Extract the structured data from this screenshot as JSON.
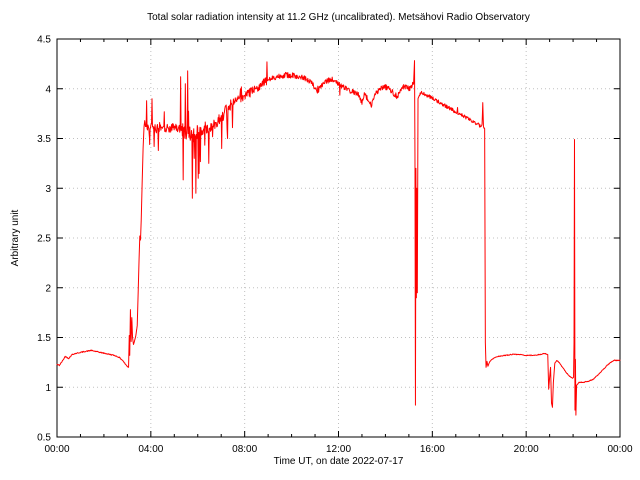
{
  "chart_data": {
    "type": "line",
    "title": "Total solar radiation intensity at 11.2 GHz (uncalibrated). Metsähovi Radio Observatory",
    "xlabel": "Time UT, on date 2022-07-17",
    "ylabel": "Arbitrary unit",
    "xlim_hours": [
      0,
      24
    ],
    "ylim": [
      0.5,
      4.5
    ],
    "grid": true,
    "legend_position": "none",
    "background_color": "#ffffff",
    "line_color": "#ff0000",
    "grid_color": "#c0c0c0",
    "frame_color": "#000000",
    "x_major_ticks": [
      {
        "hour": 0,
        "label": "00:00"
      },
      {
        "hour": 4,
        "label": "04:00"
      },
      {
        "hour": 8,
        "label": "08:00"
      },
      {
        "hour": 12,
        "label": "12:00"
      },
      {
        "hour": 16,
        "label": "16:00"
      },
      {
        "hour": 20,
        "label": "20:00"
      },
      {
        "hour": 24,
        "label": "00:00"
      }
    ],
    "x_minor_tick_every_hours": 1,
    "y_ticks": [
      {
        "value": 0.5,
        "label": "0.5"
      },
      {
        "value": 1.0,
        "label": "1"
      },
      {
        "value": 1.5,
        "label": "1.5"
      },
      {
        "value": 2.0,
        "label": "2"
      },
      {
        "value": 2.5,
        "label": "2.5"
      },
      {
        "value": 3.0,
        "label": "3"
      },
      {
        "value": 3.5,
        "label": "3.5"
      },
      {
        "value": 4.0,
        "label": "4"
      },
      {
        "value": 4.5,
        "label": "4.5"
      }
    ],
    "series": [
      {
        "name": "total-solar-radiation-intensity",
        "points": [
          [
            0.0,
            1.23
          ],
          [
            0.1,
            1.22
          ],
          [
            0.25,
            1.27
          ],
          [
            0.35,
            1.31
          ],
          [
            0.5,
            1.29
          ],
          [
            0.65,
            1.33
          ],
          [
            0.8,
            1.34
          ],
          [
            1.0,
            1.35
          ],
          [
            1.2,
            1.36
          ],
          [
            1.45,
            1.37
          ],
          [
            1.65,
            1.36
          ],
          [
            1.85,
            1.35
          ],
          [
            2.05,
            1.34
          ],
          [
            2.25,
            1.33
          ],
          [
            2.45,
            1.32
          ],
          [
            2.65,
            1.3
          ],
          [
            2.8,
            1.27
          ],
          [
            2.92,
            1.23
          ],
          [
            3.0,
            1.21
          ],
          [
            3.05,
            1.2
          ],
          [
            3.08,
            1.52
          ],
          [
            3.1,
            1.32
          ],
          [
            3.13,
            1.78
          ],
          [
            3.16,
            1.46
          ],
          [
            3.19,
            1.7
          ],
          [
            3.22,
            1.5
          ],
          [
            3.26,
            1.43
          ],
          [
            3.31,
            1.47
          ],
          [
            3.36,
            1.52
          ],
          [
            3.42,
            1.62
          ],
          [
            3.46,
            1.95
          ],
          [
            3.5,
            2.3
          ],
          [
            3.53,
            2.52
          ],
          [
            3.56,
            2.48
          ],
          [
            3.59,
            2.68
          ],
          [
            3.63,
            3.05
          ],
          [
            3.67,
            3.4
          ],
          [
            3.71,
            3.62
          ],
          [
            3.74,
            3.68
          ],
          [
            3.77,
            3.62
          ],
          [
            3.8,
            3.62
          ],
          [
            3.82,
            3.88
          ],
          [
            3.84,
            3.6
          ],
          [
            3.93,
            3.58
          ],
          [
            3.95,
            3.44
          ],
          [
            3.97,
            3.6
          ],
          [
            4.03,
            3.62
          ],
          [
            4.05,
            3.9
          ],
          [
            4.07,
            3.62
          ],
          [
            4.12,
            3.6
          ],
          [
            4.14,
            3.42
          ],
          [
            4.16,
            3.6
          ],
          [
            4.3,
            3.6
          ],
          [
            4.32,
            3.38
          ],
          [
            4.34,
            3.6
          ],
          [
            4.5,
            3.62
          ],
          [
            4.7,
            3.6
          ],
          [
            4.9,
            3.61
          ],
          [
            5.05,
            3.6
          ],
          [
            5.25,
            3.6
          ],
          [
            5.27,
            4.12
          ],
          [
            5.29,
            3.58
          ],
          [
            5.45,
            3.58
          ],
          [
            5.47,
            4.05
          ],
          [
            5.49,
            3.56
          ],
          [
            5.55,
            3.57
          ],
          [
            5.57,
            4.18
          ],
          [
            5.59,
            3.55
          ],
          [
            5.68,
            3.55
          ],
          [
            5.75,
            3.54
          ],
          [
            5.77,
            2.9
          ],
          [
            5.79,
            3.54
          ],
          [
            5.83,
            3.52
          ],
          [
            5.85,
            3.3
          ],
          [
            5.87,
            3.54
          ],
          [
            5.9,
            3.52
          ],
          [
            5.92,
            2.95
          ],
          [
            5.94,
            3.54
          ],
          [
            6.0,
            3.55
          ],
          [
            6.02,
            3.1
          ],
          [
            6.04,
            3.56
          ],
          [
            6.15,
            3.57
          ],
          [
            6.3,
            3.58
          ],
          [
            6.45,
            3.6
          ],
          [
            6.47,
            3.25
          ],
          [
            6.49,
            3.6
          ],
          [
            6.65,
            3.63
          ],
          [
            6.85,
            3.68
          ],
          [
            7.0,
            3.72
          ],
          [
            7.02,
            3.4
          ],
          [
            7.04,
            3.72
          ],
          [
            7.25,
            3.8
          ],
          [
            7.27,
            3.5
          ],
          [
            7.29,
            3.8
          ],
          [
            7.5,
            3.85
          ],
          [
            7.8,
            3.9
          ],
          [
            8.1,
            3.94
          ],
          [
            8.4,
            3.99
          ],
          [
            8.7,
            4.04
          ],
          [
            8.93,
            4.08
          ],
          [
            8.95,
            4.27
          ],
          [
            8.97,
            4.08
          ],
          [
            9.2,
            4.11
          ],
          [
            9.5,
            4.13
          ],
          [
            9.8,
            4.14
          ],
          [
            10.1,
            4.13
          ],
          [
            10.4,
            4.12
          ],
          [
            10.6,
            4.1
          ],
          [
            10.8,
            4.08
          ],
          [
            11.0,
            4.0
          ],
          [
            11.1,
            3.97
          ],
          [
            11.25,
            4.02
          ],
          [
            11.5,
            4.08
          ],
          [
            11.75,
            4.09
          ],
          [
            12.0,
            4.05
          ],
          [
            12.3,
            4.0
          ],
          [
            12.6,
            3.97
          ],
          [
            12.9,
            3.93
          ],
          [
            13.0,
            3.85
          ],
          [
            13.1,
            3.95
          ],
          [
            13.4,
            3.83
          ],
          [
            13.55,
            3.95
          ],
          [
            13.8,
            4.0
          ],
          [
            14.0,
            4.02
          ],
          [
            14.2,
            3.99
          ],
          [
            14.5,
            3.92
          ],
          [
            14.65,
            4.0
          ],
          [
            14.8,
            4.02
          ],
          [
            15.0,
            4.0
          ],
          [
            15.1,
            4.02
          ],
          [
            15.2,
            4.05
          ],
          [
            15.24,
            4.28
          ],
          [
            15.26,
            3.3
          ],
          [
            15.28,
            0.82
          ],
          [
            15.3,
            3.2
          ],
          [
            15.32,
            1.9
          ],
          [
            15.34,
            3.0
          ],
          [
            15.36,
            1.95
          ],
          [
            15.39,
            3.9
          ],
          [
            15.5,
            3.96
          ],
          [
            15.7,
            3.94
          ],
          [
            15.9,
            3.92
          ],
          [
            16.1,
            3.89
          ],
          [
            16.4,
            3.85
          ],
          [
            16.7,
            3.81
          ],
          [
            17.0,
            3.77
          ],
          [
            17.3,
            3.73
          ],
          [
            17.6,
            3.69
          ],
          [
            17.9,
            3.65
          ],
          [
            18.05,
            3.62
          ],
          [
            18.12,
            3.63
          ],
          [
            18.15,
            3.86
          ],
          [
            18.18,
            3.62
          ],
          [
            18.23,
            3.6
          ],
          [
            18.26,
            1.45
          ],
          [
            18.29,
            1.2
          ],
          [
            18.33,
            1.26
          ],
          [
            18.37,
            1.21
          ],
          [
            18.45,
            1.26
          ],
          [
            18.6,
            1.29
          ],
          [
            18.8,
            1.31
          ],
          [
            19.1,
            1.32
          ],
          [
            19.4,
            1.33
          ],
          [
            19.7,
            1.33
          ],
          [
            20.0,
            1.32
          ],
          [
            20.3,
            1.32
          ],
          [
            20.6,
            1.33
          ],
          [
            20.8,
            1.34
          ],
          [
            20.92,
            1.33
          ],
          [
            20.96,
            0.98
          ],
          [
            21.0,
            1.1
          ],
          [
            21.04,
            1.2
          ],
          [
            21.08,
            0.84
          ],
          [
            21.12,
            0.8
          ],
          [
            21.16,
            1.05
          ],
          [
            21.22,
            1.24
          ],
          [
            21.3,
            1.27
          ],
          [
            21.4,
            1.25
          ],
          [
            21.55,
            1.2
          ],
          [
            21.7,
            1.15
          ],
          [
            21.85,
            1.11
          ],
          [
            21.98,
            1.09
          ],
          [
            22.02,
            1.1
          ],
          [
            22.04,
            1.45
          ],
          [
            22.06,
            3.49
          ],
          [
            22.08,
            0.77
          ],
          [
            22.1,
            1.28
          ],
          [
            22.12,
            0.72
          ],
          [
            22.15,
            1.02
          ],
          [
            22.25,
            1.05
          ],
          [
            22.45,
            1.05
          ],
          [
            22.65,
            1.06
          ],
          [
            22.85,
            1.08
          ],
          [
            23.05,
            1.12
          ],
          [
            23.25,
            1.17
          ],
          [
            23.45,
            1.22
          ],
          [
            23.6,
            1.25
          ],
          [
            23.75,
            1.27
          ],
          [
            23.9,
            1.27
          ],
          [
            24.0,
            1.27
          ]
        ]
      }
    ],
    "noise_segments": [
      {
        "from": 0.0,
        "to": 3.05,
        "amp": 0.005,
        "spike_up": 0,
        "spike_down": 0,
        "prob": 0
      },
      {
        "from": 3.78,
        "to": 5.1,
        "amp": 0.045,
        "spike_up": 0.2,
        "spike_down": 0.22,
        "prob": 0.05
      },
      {
        "from": 5.1,
        "to": 6.12,
        "amp": 0.085,
        "spike_up": 0.42,
        "spike_down": 0.55,
        "prob": 0.1
      },
      {
        "from": 6.12,
        "to": 7.6,
        "amp": 0.055,
        "spike_up": 0.15,
        "spike_down": 0.3,
        "prob": 0.06
      },
      {
        "from": 7.6,
        "to": 9.0,
        "amp": 0.042,
        "spike_up": 0.12,
        "spike_down": 0.14,
        "prob": 0.05
      },
      {
        "from": 9.0,
        "to": 11.2,
        "amp": 0.028,
        "spike_up": 0.06,
        "spike_down": 0.08,
        "prob": 0.04
      },
      {
        "from": 11.2,
        "to": 15.18,
        "amp": 0.028,
        "spike_up": 0.07,
        "spike_down": 0.11,
        "prob": 0.04
      },
      {
        "from": 15.45,
        "to": 18.2,
        "amp": 0.018,
        "spike_up": 0.05,
        "spike_down": 0.06,
        "prob": 0.03
      },
      {
        "from": 18.45,
        "to": 20.9,
        "amp": 0.004,
        "spike_up": 0,
        "spike_down": 0,
        "prob": 0
      },
      {
        "from": 22.2,
        "to": 24.0,
        "amp": 0.004,
        "spike_up": 0,
        "spike_down": 0,
        "prob": 0
      }
    ]
  }
}
